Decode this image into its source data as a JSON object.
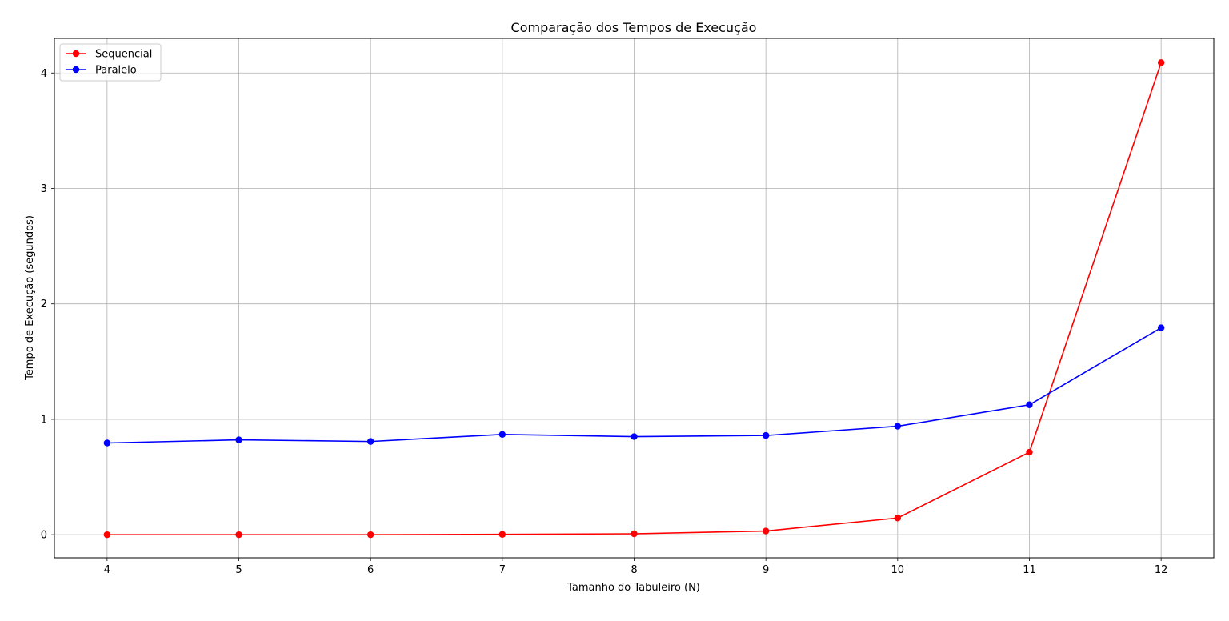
{
  "chart_data": {
    "type": "line",
    "title": "Comparação dos Tempos de Execução",
    "xlabel": "Tamanho do Tabuleiro (N)",
    "ylabel": "Tempo de Execução (segundos)",
    "x": [
      4,
      5,
      6,
      7,
      8,
      9,
      10,
      11,
      12
    ],
    "x_ticks": [
      "4",
      "5",
      "6",
      "7",
      "8",
      "9",
      "10",
      "11",
      "12"
    ],
    "y_ticks": [
      "0",
      "1",
      "2",
      "3",
      "4"
    ],
    "xlim": [
      3.6,
      12.4
    ],
    "ylim": [
      -0.2,
      4.3
    ],
    "grid": true,
    "legend_position": "top-left",
    "series": [
      {
        "name": "Sequencial",
        "color": "#ff0000",
        "marker": "circle",
        "values": [
          0.0,
          0.0,
          0.0,
          0.003,
          0.008,
          0.032,
          0.145,
          0.715,
          4.09
        ]
      },
      {
        "name": "Paralelo",
        "color": "#0000ff",
        "marker": "circle",
        "values": [
          0.795,
          0.822,
          0.808,
          0.869,
          0.85,
          0.86,
          0.94,
          1.126,
          1.793
        ]
      }
    ]
  }
}
